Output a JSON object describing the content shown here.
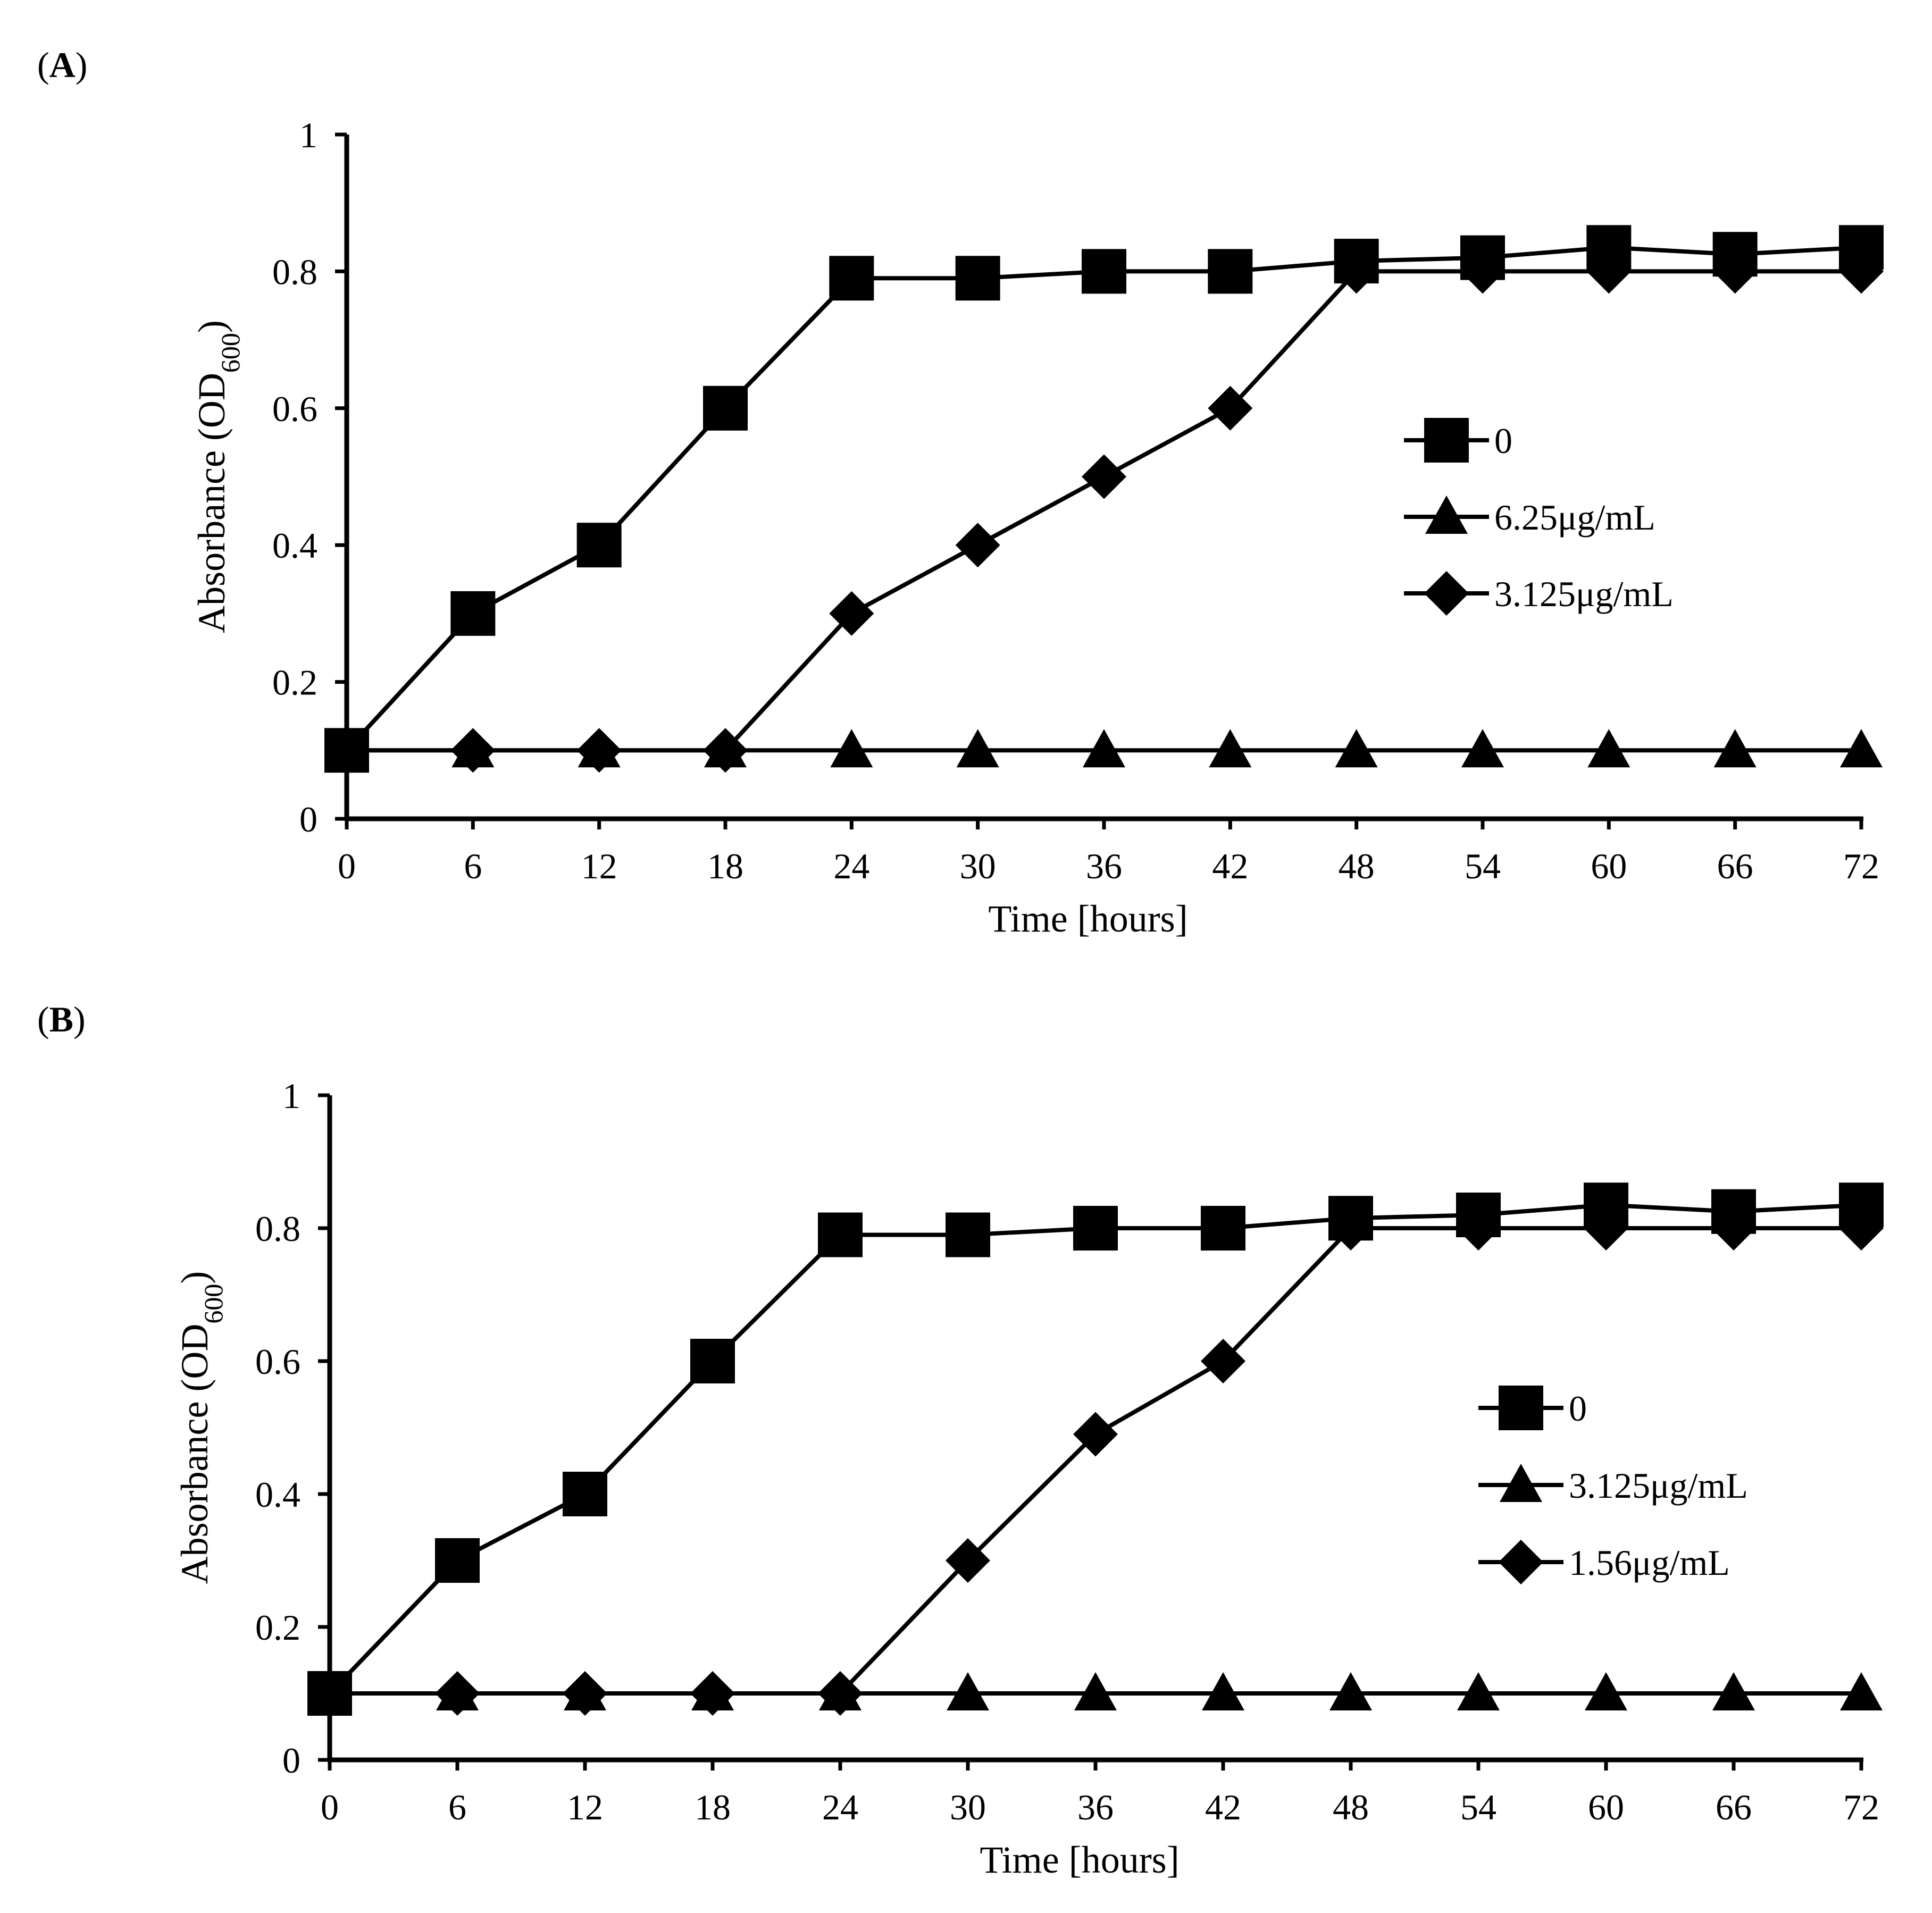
{
  "chart_data": [
    {
      "type": "line",
      "panel_label": "A",
      "xlabel": "Time [hours]",
      "ylabel": {
        "main": "Absorbance (OD",
        "sub": "600",
        "close": ")"
      },
      "xlim": [
        0,
        72
      ],
      "ylim": [
        0,
        1
      ],
      "x": [
        0,
        6,
        12,
        18,
        24,
        30,
        36,
        42,
        48,
        54,
        60,
        66,
        72
      ],
      "x_tick_labels": [
        "0",
        "6",
        "12",
        "18",
        "24",
        "30",
        "36",
        "42",
        "48",
        "54",
        "60",
        "66",
        "72"
      ],
      "y_ticks": [
        0,
        0.2,
        0.4,
        0.6,
        0.8,
        1
      ],
      "y_tick_labels": [
        "0",
        "0.2",
        "0.4",
        "0.6",
        "0.8",
        "1"
      ],
      "legend_position": "center-right",
      "series": [
        {
          "name": "0",
          "marker": "square",
          "values": [
            0.1,
            0.3,
            0.4,
            0.6,
            0.79,
            0.79,
            0.8,
            0.8,
            0.815,
            0.82,
            0.835,
            0.825,
            0.835
          ]
        },
        {
          "name": "6.25μg/mL",
          "marker": "triangle",
          "values": [
            0.1,
            0.1,
            0.1,
            0.1,
            0.1,
            0.1,
            0.1,
            0.1,
            0.1,
            0.1,
            0.1,
            0.1,
            0.1
          ]
        },
        {
          "name": "3.125μg/mL",
          "marker": "diamond",
          "values": [
            0.1,
            0.1,
            0.1,
            0.1,
            0.3,
            0.4,
            0.5,
            0.6,
            0.8,
            0.8,
            0.8,
            0.8,
            0.8
          ]
        }
      ]
    },
    {
      "type": "line",
      "panel_label": "B",
      "xlabel": "Time [hours]",
      "ylabel": {
        "main": "Absorbance (OD",
        "sub": "600",
        "close": ")"
      },
      "xlim": [
        0,
        72
      ],
      "ylim": [
        0,
        1
      ],
      "x": [
        0,
        6,
        12,
        18,
        24,
        30,
        36,
        42,
        48,
        54,
        60,
        66,
        72
      ],
      "x_tick_labels": [
        "0",
        "6",
        "12",
        "18",
        "24",
        "30",
        "36",
        "42",
        "48",
        "54",
        "60",
        "66",
        "72"
      ],
      "y_ticks": [
        0,
        0.2,
        0.4,
        0.6,
        0.8,
        1
      ],
      "y_tick_labels": [
        "0",
        "0.2",
        "0.4",
        "0.6",
        "0.8",
        "1"
      ],
      "legend_position": "center-right",
      "series": [
        {
          "name": "0",
          "marker": "square",
          "values": [
            0.1,
            0.3,
            0.4,
            0.6,
            0.79,
            0.79,
            0.8,
            0.8,
            0.815,
            0.82,
            0.835,
            0.825,
            0.835
          ]
        },
        {
          "name": "3.125μg/mL",
          "marker": "triangle",
          "values": [
            0.1,
            0.1,
            0.1,
            0.1,
            0.1,
            0.1,
            0.1,
            0.1,
            0.1,
            0.1,
            0.1,
            0.1,
            0.1
          ]
        },
        {
          "name": "1.56μg/mL",
          "marker": "diamond",
          "values": [
            0.1,
            0.1,
            0.1,
            0.1,
            0.1,
            0.3,
            0.49,
            0.6,
            0.8,
            0.8,
            0.8,
            0.8,
            0.8
          ]
        }
      ]
    }
  ]
}
